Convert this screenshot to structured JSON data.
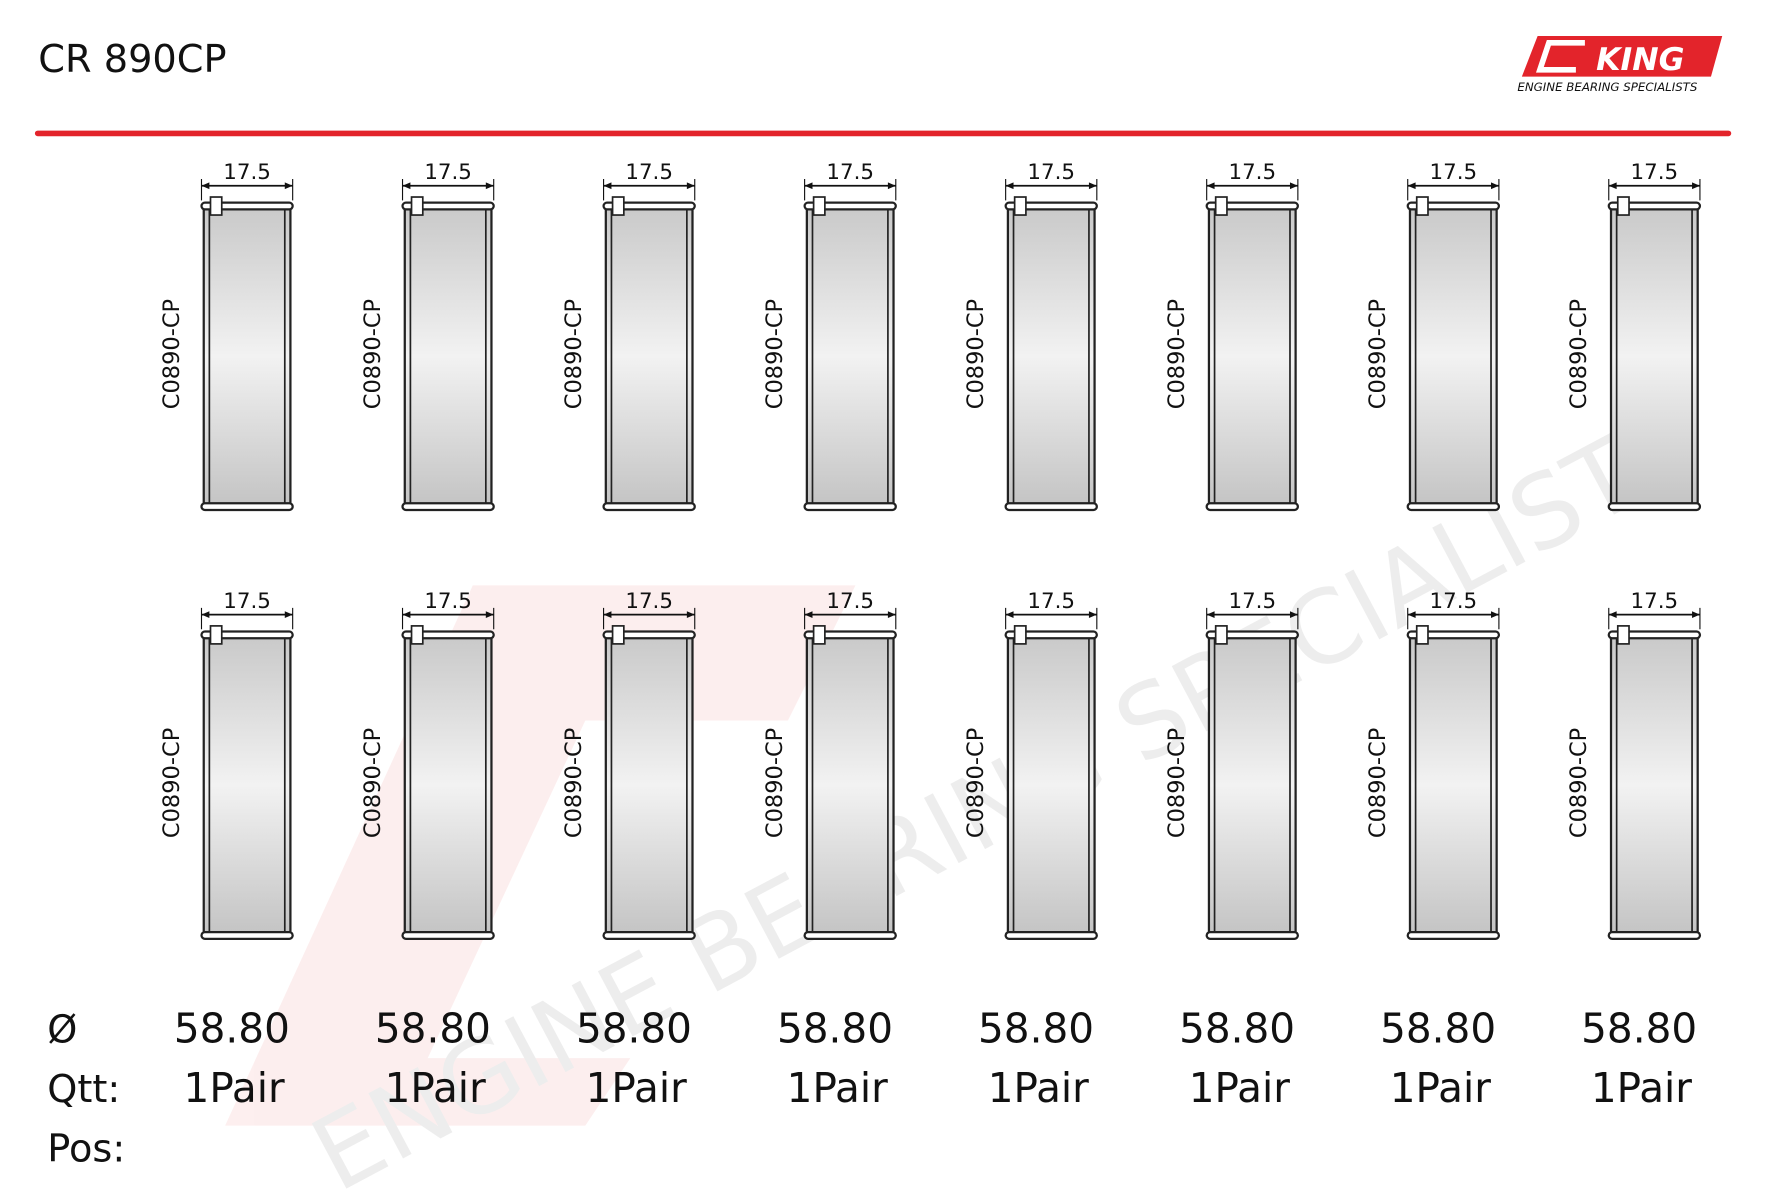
{
  "header": {
    "title": "CR 890CP"
  },
  "logo": {
    "name": "KING",
    "tagline": "ENGINE BEARING SPECIALISTS"
  },
  "bearings": [
    {
      "width": "17.5",
      "part": "C0890-CP"
    },
    {
      "width": "17.5",
      "part": "C0890-CP"
    },
    {
      "width": "17.5",
      "part": "C0890-CP"
    },
    {
      "width": "17.5",
      "part": "C0890-CP"
    },
    {
      "width": "17.5",
      "part": "C0890-CP"
    },
    {
      "width": "17.5",
      "part": "C0890-CP"
    },
    {
      "width": "17.5",
      "part": "C0890-CP"
    },
    {
      "width": "17.5",
      "part": "C0890-CP"
    },
    {
      "width": "17.5",
      "part": "C0890-CP"
    },
    {
      "width": "17.5",
      "part": "C0890-CP"
    },
    {
      "width": "17.5",
      "part": "C0890-CP"
    },
    {
      "width": "17.5",
      "part": "C0890-CP"
    },
    {
      "width": "17.5",
      "part": "C0890-CP"
    },
    {
      "width": "17.5",
      "part": "C0890-CP"
    },
    {
      "width": "17.5",
      "part": "C0890-CP"
    },
    {
      "width": "17.5",
      "part": "C0890-CP"
    }
  ],
  "footer": {
    "labels": [
      "Ø",
      "Qtt:",
      "Pos:"
    ],
    "diameters": [
      "58.80",
      "58.80",
      "58.80",
      "58.80",
      "58.80",
      "58.80",
      "58.80",
      "58.80"
    ],
    "quantities": [
      "1Pair",
      "1Pair",
      "1Pair",
      "1Pair",
      "1Pair",
      "1Pair",
      "1Pair",
      "1Pair"
    ]
  }
}
